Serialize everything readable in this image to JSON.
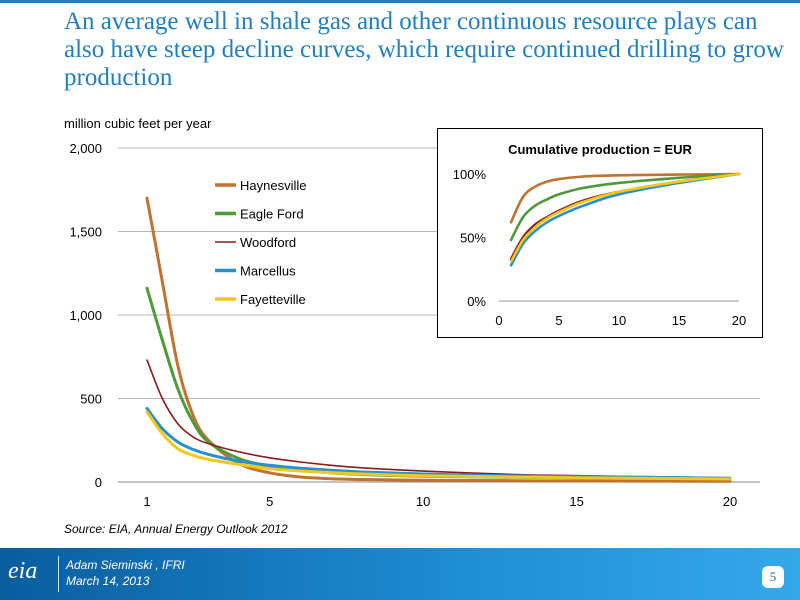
{
  "title": "An average well in shale gas and other continuous resource plays can also have steep decline curves, which require continued drilling to grow production",
  "source": "Source:  EIA, Annual Energy Outlook 2012",
  "footer": {
    "logo": "eia",
    "presenter": "Adam Sieminski , IFRI",
    "date": "March 14, 2013",
    "page": "5"
  },
  "colors": {
    "title": "#1f7fc0",
    "Haynesville": "#c0722e",
    "Eagle Ford": "#4e9a3a",
    "Woodford": "#8b1a1a",
    "Marcellus": "#2a8fd0",
    "Fayetteville": "#f2c81a"
  },
  "chart_data": [
    {
      "type": "line",
      "ylabel": "million cubic feet per year",
      "ylim": [
        0,
        2000
      ],
      "xlim": [
        0,
        20
      ],
      "y_ticks": [
        0,
        500,
        1000,
        1500,
        2000
      ],
      "y_tick_labels": [
        "0",
        "500",
        "1,000",
        "1,500",
        "2,000"
      ],
      "x_ticks": [
        1,
        5,
        10,
        15,
        20
      ],
      "x_tick_labels": [
        "1",
        "5",
        "10",
        "15",
        "20"
      ],
      "grid": "horizontal",
      "legend": "top-left",
      "series": [
        {
          "name": "Haynesville",
          "x": [
            1,
            1.5,
            2,
            2.5,
            3,
            4,
            5,
            6,
            7,
            8,
            10,
            13,
            15,
            20
          ],
          "y": [
            1700,
            1200,
            700,
            400,
            250,
            110,
            55,
            30,
            20,
            15,
            10,
            8,
            6,
            5
          ]
        },
        {
          "name": "Eagle Ford",
          "x": [
            1,
            1.5,
            2,
            2.5,
            3,
            4,
            5,
            6,
            7,
            8,
            10,
            13,
            15,
            20
          ],
          "y": [
            1160,
            850,
            560,
            360,
            240,
            140,
            95,
            70,
            55,
            45,
            35,
            28,
            25,
            20
          ]
        },
        {
          "name": "Woodford",
          "x": [
            1,
            1.5,
            2,
            2.5,
            3,
            4,
            5,
            6,
            7,
            8,
            10,
            13,
            15,
            20
          ],
          "y": [
            730,
            500,
            350,
            270,
            230,
            180,
            145,
            120,
            100,
            85,
            65,
            45,
            38,
            25
          ]
        },
        {
          "name": "Marcellus",
          "x": [
            1,
            1.5,
            2,
            2.5,
            3,
            4,
            5,
            6,
            7,
            8,
            10,
            13,
            15,
            20
          ],
          "y": [
            440,
            320,
            240,
            195,
            165,
            125,
            100,
            82,
            70,
            60,
            48,
            36,
            32,
            22
          ]
        },
        {
          "name": "Fayetteville",
          "x": [
            1,
            1.5,
            2,
            2.5,
            3,
            4,
            5,
            6,
            7,
            8,
            10,
            13,
            15,
            20
          ],
          "y": [
            420,
            290,
            200,
            160,
            135,
            105,
            80,
            66,
            56,
            48,
            38,
            30,
            26,
            18
          ]
        }
      ]
    },
    {
      "type": "line",
      "title": "Cumulative production = EUR",
      "ylim": [
        0,
        100
      ],
      "xlim": [
        0,
        20
      ],
      "y_ticks": [
        0,
        50,
        100
      ],
      "y_tick_labels": [
        "0%",
        "50%",
        "100%"
      ],
      "x_ticks": [
        0,
        5,
        10,
        15,
        20
      ],
      "x_tick_labels": [
        "0",
        "5",
        "10",
        "15",
        "20"
      ],
      "grid": "none",
      "series": [
        {
          "name": "Haynesville",
          "x": [
            1,
            2,
            3,
            4,
            5,
            7,
            10,
            15,
            20
          ],
          "y": [
            62,
            82,
            90,
            94,
            96,
            98,
            99,
            99.5,
            100
          ]
        },
        {
          "name": "Eagle Ford",
          "x": [
            1,
            2,
            3,
            4,
            5,
            7,
            10,
            15,
            20
          ],
          "y": [
            48,
            66,
            75,
            80,
            84,
            89,
            93,
            97,
            100
          ]
        },
        {
          "name": "Woodford",
          "x": [
            1,
            2,
            3,
            4,
            5,
            7,
            10,
            15,
            20
          ],
          "y": [
            33,
            50,
            60,
            66,
            71,
            79,
            86,
            94,
            100
          ]
        },
        {
          "name": "Marcellus",
          "x": [
            1,
            2,
            3,
            4,
            5,
            7,
            10,
            15,
            20
          ],
          "y": [
            28,
            45,
            55,
            62,
            67,
            75,
            84,
            93,
            100
          ]
        },
        {
          "name": "Fayetteville",
          "x": [
            1,
            2,
            3,
            4,
            5,
            7,
            10,
            15,
            20
          ],
          "y": [
            31,
            48,
            58,
            65,
            70,
            78,
            86,
            94,
            100
          ]
        }
      ]
    }
  ]
}
